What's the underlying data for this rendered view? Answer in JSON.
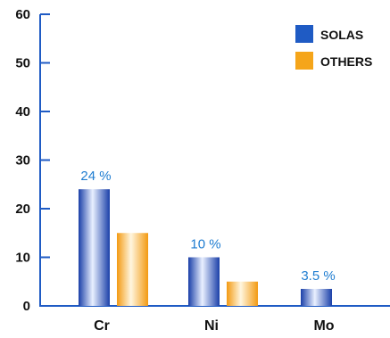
{
  "chart_data": {
    "type": "bar",
    "categories": [
      "Cr",
      "Ni",
      "Mo"
    ],
    "series": [
      {
        "name": "SOLAS",
        "values": [
          24,
          10,
          3.5
        ],
        "color": "#1f5bc4",
        "labels": [
          "24 %",
          "10 %",
          "3.5 %"
        ]
      },
      {
        "name": "OTHERS",
        "values": [
          15,
          5,
          null
        ],
        "color": "#f5a51a"
      }
    ],
    "ylim": [
      0,
      60
    ],
    "yticks": [
      "0",
      "10",
      "20",
      "30",
      "40",
      "50",
      "60"
    ],
    "legend_position": "top-right",
    "grid": false,
    "axis_color": "#1f5bc4",
    "label_color": "#1f7dd1"
  }
}
